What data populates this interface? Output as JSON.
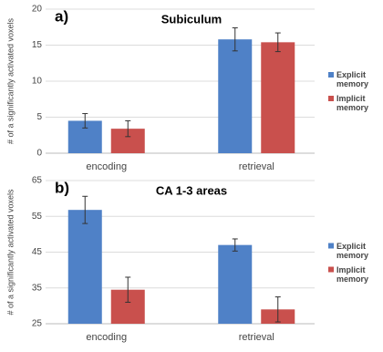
{
  "chart_data": [
    {
      "type": "bar",
      "panel_label": "a)",
      "title": "Subiculum",
      "y_label": "# of a significantly activated voxels",
      "categories": [
        "encoding",
        "retrieval"
      ],
      "series": [
        {
          "name": "Explicit memory",
          "color": "#4f81c7",
          "values": [
            4.5,
            15.8
          ],
          "errors": [
            1.0,
            1.6
          ]
        },
        {
          "name": "Implicit memory",
          "color": "#c9504d",
          "values": [
            3.4,
            15.4
          ],
          "errors": [
            1.1,
            1.3
          ]
        }
      ],
      "ylim": [
        0,
        20
      ],
      "yticks": [
        0,
        5,
        10,
        15,
        20
      ],
      "grid": true
    },
    {
      "type": "bar",
      "panel_label": "b)",
      "title": "CA 1-3 areas",
      "y_label": "# of a significantly activated voxels",
      "categories": [
        "encoding",
        "retrieval"
      ],
      "series": [
        {
          "name": "Explicit memory",
          "color": "#4f81c7",
          "values": [
            56.8,
            47.0
          ],
          "errors": [
            3.8,
            1.7
          ]
        },
        {
          "name": "Implicit memory",
          "color": "#c9504d",
          "values": [
            34.5,
            29.0
          ],
          "errors": [
            3.5,
            3.5
          ]
        }
      ],
      "ylim": [
        25,
        65
      ],
      "yticks": [
        25,
        35,
        45,
        55,
        65
      ],
      "grid": true
    }
  ]
}
